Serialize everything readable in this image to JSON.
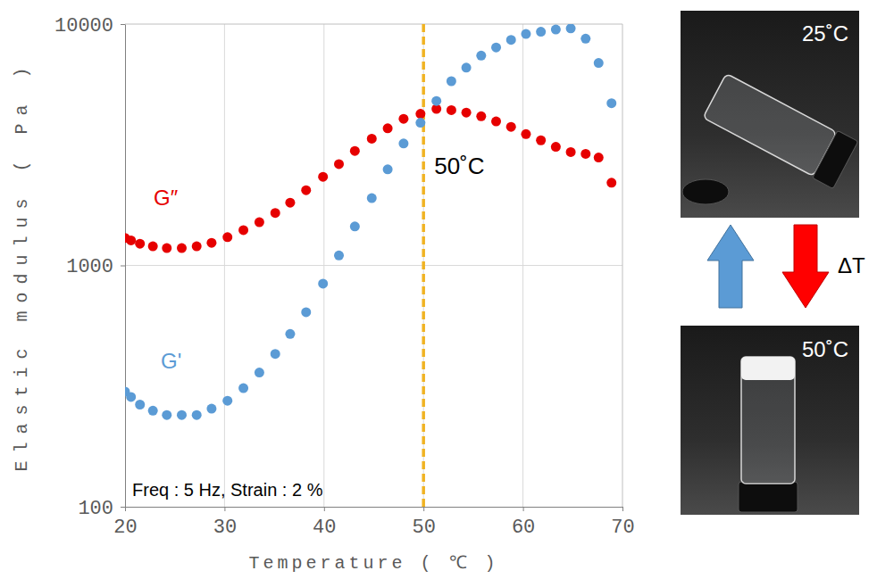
{
  "chart_data": {
    "type": "scatter",
    "x_label": "Temperature ( ℃ )",
    "y_label": "Elastic modulus ( Pa )",
    "log": "y",
    "grid": true,
    "xlim": [
      20,
      70
    ],
    "xticks": [
      20,
      30,
      40,
      50,
      60,
      70
    ],
    "ylim": [
      100,
      10000
    ],
    "yticks": [
      100,
      1000,
      10000
    ],
    "x": [
      20,
      20.6,
      21.5,
      22.8,
      24.2,
      25.7,
      27.2,
      28.7,
      30.3,
      31.9,
      33.5,
      35.1,
      36.6,
      38.2,
      39.9,
      41.5,
      43.1,
      44.8,
      46.4,
      48,
      49.7,
      51.3,
      52.8,
      54.3,
      55.8,
      57.3,
      58.8,
      60.3,
      61.8,
      63.3,
      64.8,
      66.3,
      67.6,
      68.9
    ],
    "series": [
      {
        "name": "G″",
        "color": "#e60000",
        "marker": "circle",
        "values": [
          1300,
          1270,
          1230,
          1200,
          1180,
          1180,
          1200,
          1240,
          1310,
          1400,
          1510,
          1650,
          1820,
          2050,
          2330,
          2630,
          2980,
          3350,
          3700,
          4050,
          4250,
          4450,
          4400,
          4300,
          4150,
          3950,
          3750,
          3500,
          3300,
          3100,
          2950,
          2900,
          2800,
          2200
        ]
      },
      {
        "name": "G'",
        "color": "#5b9bd5",
        "marker": "circle",
        "values": [
          300,
          285,
          265,
          250,
          240,
          240,
          240,
          255,
          275,
          310,
          360,
          430,
          520,
          640,
          840,
          1100,
          1450,
          1900,
          2500,
          3200,
          3900,
          4800,
          5800,
          6600,
          7400,
          8000,
          8600,
          9100,
          9300,
          9500,
          9600,
          8700,
          6900,
          4700
        ]
      }
    ],
    "vline": {
      "x": 50,
      "label": "50˚C",
      "color": "#f0b323",
      "line_style": "dashed"
    },
    "annotations": [
      "Freq : 5 Hz, Strain : 2 %"
    ]
  },
  "photos": {
    "labels": [
      "25˚C",
      "50˚C"
    ],
    "arrow_label": "ΔT"
  }
}
